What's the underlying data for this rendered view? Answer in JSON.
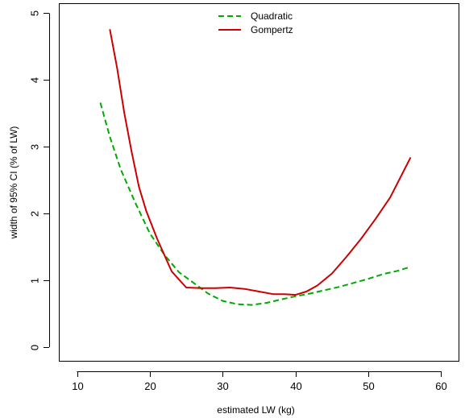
{
  "chart_data": {
    "type": "line",
    "xlabel": "estimated LW (kg)",
    "ylabel": "width of 95% CI (% of LW)",
    "xlim": [
      7.5,
      62.5
    ],
    "ylim": [
      -0.22,
      5.15
    ],
    "xticks": [
      10,
      20,
      30,
      40,
      50,
      60
    ],
    "yticks": [
      0,
      1,
      2,
      3,
      4,
      5
    ],
    "xtick_labels": [
      "10",
      "20",
      "30",
      "40",
      "50",
      "60"
    ],
    "ytick_labels": [
      "0",
      "1",
      "2",
      "3",
      "4",
      "5"
    ],
    "grid": false,
    "legend_position": "top-center",
    "series": [
      {
        "name": "Quadratic",
        "color": "#00aa00",
        "dash": "dashed",
        "x": [
          13.2,
          14.5,
          16.0,
          18.0,
          20.0,
          22.0,
          24.0,
          26.0,
          28.0,
          30.0,
          32.0,
          34.0,
          36.0,
          38.0,
          40.0,
          42.0,
          44.0,
          46.0,
          48.0,
          50.0,
          52.0,
          54.0,
          55.8
        ],
        "values": [
          3.66,
          3.15,
          2.66,
          2.16,
          1.7,
          1.38,
          1.12,
          0.96,
          0.8,
          0.69,
          0.64,
          0.63,
          0.66,
          0.71,
          0.76,
          0.8,
          0.85,
          0.9,
          0.96,
          1.02,
          1.09,
          1.14,
          1.2
        ]
      },
      {
        "name": "Gompertz",
        "color": "#cc0000",
        "dash": "solid",
        "x": [
          14.5,
          15.5,
          16.5,
          17.5,
          18.5,
          19.5,
          21.0,
          23.0,
          25.0,
          27.0,
          29.0,
          31.0,
          33.0,
          35.0,
          37.0,
          38.5,
          40.0,
          41.5,
          43.0,
          45.0,
          47.0,
          49.0,
          51.0,
          53.0,
          55.8
        ],
        "values": [
          4.76,
          4.18,
          3.5,
          2.92,
          2.4,
          2.04,
          1.62,
          1.13,
          0.89,
          0.88,
          0.88,
          0.89,
          0.87,
          0.83,
          0.79,
          0.79,
          0.78,
          0.83,
          0.92,
          1.1,
          1.35,
          1.62,
          1.92,
          2.24,
          2.84
        ]
      }
    ]
  }
}
